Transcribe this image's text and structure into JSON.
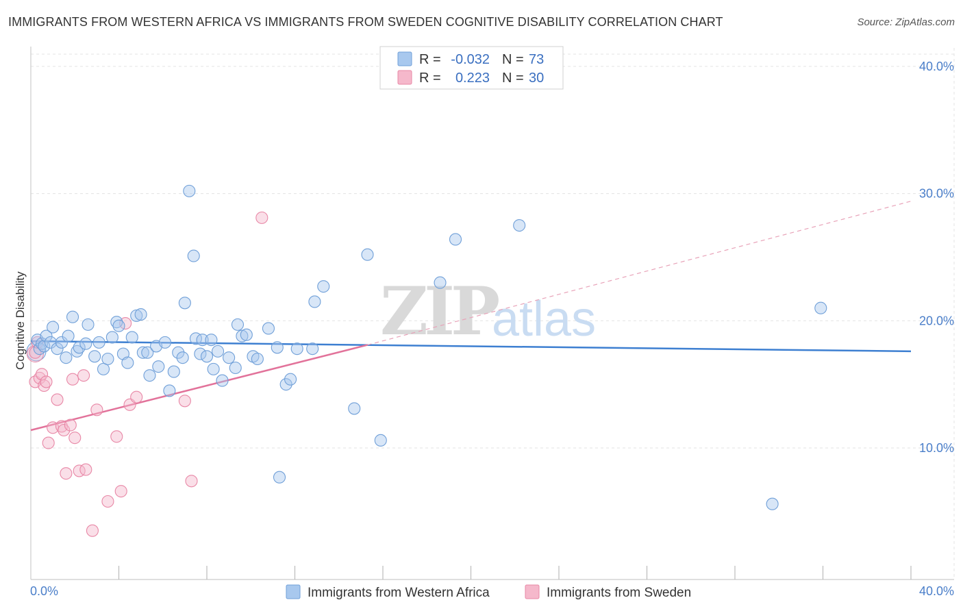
{
  "header": {
    "title": "IMMIGRANTS FROM WESTERN AFRICA VS IMMIGRANTS FROM SWEDEN COGNITIVE DISABILITY CORRELATION CHART",
    "source": "Source: ZipAtlas.com"
  },
  "watermark": {
    "zip": "ZIP",
    "atlas": "atlas"
  },
  "legend": {
    "rows": [
      {
        "r_label": "R =",
        "r_value": "-0.032",
        "n_label": "N =",
        "n_value": "73",
        "color": "#a8c8ee"
      },
      {
        "r_label": "R =",
        "r_value": "0.223",
        "n_label": "N =",
        "n_value": "30",
        "color": "#f5b8cb"
      }
    ]
  },
  "bottom_legend": {
    "items": [
      {
        "label": "Immigrants from Western Africa",
        "color": "#a8c8ee"
      },
      {
        "label": "Immigrants from Sweden",
        "color": "#f5b8cb"
      }
    ]
  },
  "chart_data": {
    "type": "scatter",
    "title": "IMMIGRANTS FROM WESTERN AFRICA VS IMMIGRANTS FROM SWEDEN COGNITIVE DISABILITY CORRELATION CHART",
    "xlabel": "",
    "ylabel": "Cognitive Disability",
    "xlim": [
      0,
      40
    ],
    "ylim": [
      0,
      40
    ],
    "x_tick_labels": [
      "0.0%",
      "40.0%"
    ],
    "y_ticks": [
      10,
      20,
      30,
      40
    ],
    "y_tick_labels": [
      "10.0%",
      "20.0%",
      "30.0%",
      "40.0%"
    ],
    "grid": true,
    "series": [
      {
        "name": "Immigrants from Western Africa",
        "color": "#6f9fd8",
        "fill": "#a8c8ee",
        "R": -0.032,
        "N": 73,
        "trend": {
          "x": [
            0,
            40
          ],
          "y": [
            18.4,
            17.6
          ],
          "style": "solid"
        },
        "points": [
          [
            0.3,
            18.5
          ],
          [
            0.4,
            17.8
          ],
          [
            0.5,
            18.2
          ],
          [
            0.6,
            18.0
          ],
          [
            0.7,
            18.8
          ],
          [
            0.9,
            18.3
          ],
          [
            1.0,
            19.5
          ],
          [
            1.2,
            17.8
          ],
          [
            1.4,
            18.3
          ],
          [
            1.6,
            17.1
          ],
          [
            1.7,
            18.8
          ],
          [
            1.9,
            20.3
          ],
          [
            2.1,
            17.6
          ],
          [
            2.2,
            17.9
          ],
          [
            2.5,
            18.2
          ],
          [
            2.6,
            19.7
          ],
          [
            2.9,
            17.2
          ],
          [
            3.1,
            18.3
          ],
          [
            3.3,
            16.2
          ],
          [
            3.5,
            17.0
          ],
          [
            3.7,
            18.7
          ],
          [
            3.9,
            19.9
          ],
          [
            4.0,
            19.6
          ],
          [
            4.2,
            17.4
          ],
          [
            4.4,
            16.7
          ],
          [
            4.6,
            18.7
          ],
          [
            4.8,
            20.4
          ],
          [
            5.0,
            20.5
          ],
          [
            5.1,
            17.5
          ],
          [
            5.3,
            17.5
          ],
          [
            5.4,
            15.7
          ],
          [
            5.7,
            18.0
          ],
          [
            5.8,
            16.4
          ],
          [
            6.1,
            18.3
          ],
          [
            6.3,
            14.5
          ],
          [
            6.5,
            16.0
          ],
          [
            6.7,
            17.5
          ],
          [
            6.9,
            17.1
          ],
          [
            7.0,
            21.4
          ],
          [
            7.2,
            30.2
          ],
          [
            7.4,
            25.1
          ],
          [
            7.5,
            18.6
          ],
          [
            7.7,
            17.4
          ],
          [
            7.8,
            18.5
          ],
          [
            8.0,
            17.2
          ],
          [
            8.2,
            18.5
          ],
          [
            8.3,
            16.2
          ],
          [
            8.5,
            17.6
          ],
          [
            8.7,
            15.3
          ],
          [
            9.0,
            17.1
          ],
          [
            9.3,
            16.3
          ],
          [
            9.4,
            19.7
          ],
          [
            9.6,
            18.8
          ],
          [
            9.8,
            18.9
          ],
          [
            10.1,
            17.2
          ],
          [
            10.3,
            17.0
          ],
          [
            10.8,
            19.4
          ],
          [
            11.2,
            17.9
          ],
          [
            11.3,
            7.7
          ],
          [
            11.6,
            15.0
          ],
          [
            11.8,
            15.4
          ],
          [
            12.1,
            17.8
          ],
          [
            12.8,
            17.8
          ],
          [
            12.9,
            21.5
          ],
          [
            13.3,
            22.7
          ],
          [
            14.7,
            13.1
          ],
          [
            15.3,
            25.2
          ],
          [
            15.9,
            10.6
          ],
          [
            18.6,
            23.0
          ],
          [
            19.3,
            26.4
          ],
          [
            22.2,
            27.5
          ],
          [
            33.7,
            5.6
          ],
          [
            35.9,
            21.0
          ]
        ]
      },
      {
        "name": "Immigrants from Sweden",
        "color": "#e887a6",
        "fill": "#f5b8cb",
        "R": 0.223,
        "N": 30,
        "trend": {
          "x": [
            0,
            15.3,
            40
          ],
          "y": [
            11.4,
            18.1,
            29.4
          ],
          "style": "solid-then-dashed"
        },
        "points": [
          [
            0.2,
            17.5
          ],
          [
            0.2,
            15.2
          ],
          [
            0.3,
            18.3
          ],
          [
            0.4,
            15.5
          ],
          [
            0.5,
            15.8
          ],
          [
            0.6,
            14.9
          ],
          [
            0.7,
            15.2
          ],
          [
            0.8,
            10.4
          ],
          [
            1.0,
            11.6
          ],
          [
            1.2,
            13.8
          ],
          [
            1.4,
            11.7
          ],
          [
            1.5,
            11.4
          ],
          [
            1.6,
            8.0
          ],
          [
            1.8,
            11.8
          ],
          [
            1.9,
            15.4
          ],
          [
            2.0,
            10.8
          ],
          [
            2.2,
            8.2
          ],
          [
            2.4,
            15.7
          ],
          [
            2.5,
            8.3
          ],
          [
            2.8,
            3.5
          ],
          [
            3.0,
            13.0
          ],
          [
            3.5,
            5.8
          ],
          [
            3.9,
            10.9
          ],
          [
            4.1,
            6.6
          ],
          [
            4.3,
            19.8
          ],
          [
            4.5,
            13.4
          ],
          [
            4.8,
            14.0
          ],
          [
            7.0,
            13.7
          ],
          [
            7.3,
            7.4
          ],
          [
            10.5,
            28.1
          ]
        ]
      }
    ]
  }
}
